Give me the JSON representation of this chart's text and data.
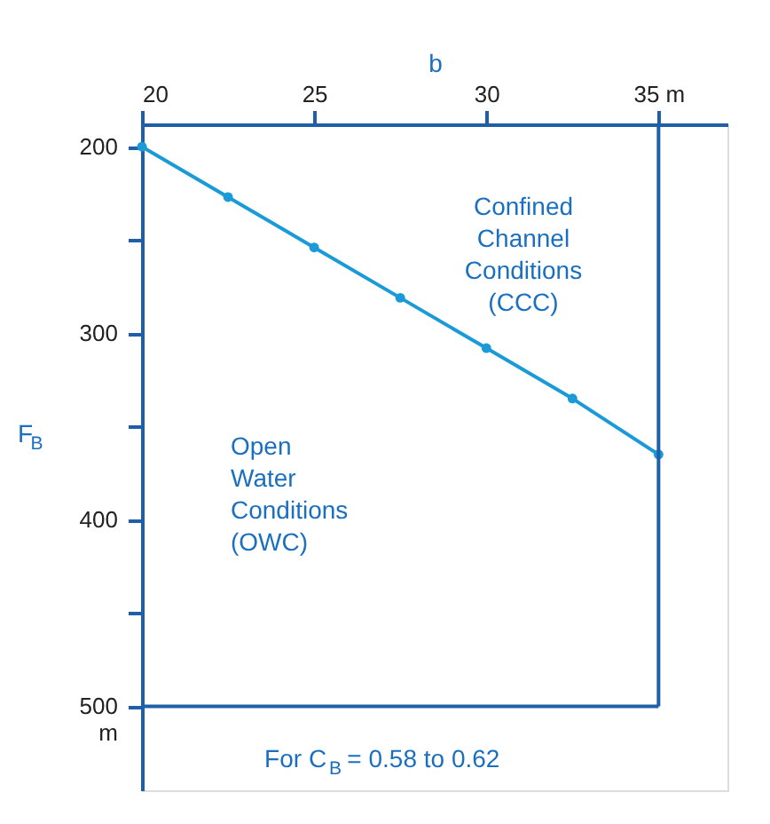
{
  "chart_data": {
    "type": "line",
    "xlabel": "b",
    "ylabel": "F$_{B}$",
    "x": [
      20,
      22.5,
      25,
      27.5,
      30,
      32.5,
      35
    ],
    "series": [
      {
        "color": "#1a9ad6",
        "values": [
          200,
          227,
          254,
          281,
          308,
          335,
          365
        ]
      }
    ],
    "xlim": [
      20,
      37
    ],
    "ylim": [
      545,
      188
    ],
    "xticks": [
      20,
      25,
      30,
      {
        "value": 35,
        "label": "35 m"
      }
    ],
    "yticks": [
      200,
      {
        "value": 250,
        "label": null
      },
      300,
      {
        "value": 350,
        "label": null
      },
      400,
      {
        "value": 450,
        "label": null
      },
      {
        "value": 500,
        "label": "500\nm"
      }
    ],
    "ref_lines": [
      {
        "axis": "x",
        "value": 35,
        "color": "#1f5fa8"
      },
      {
        "axis": "y",
        "value": 500,
        "color": "#1f5fa8"
      }
    ],
    "annotations": [
      "Confined\nChannel\nConditions\n(CCC)",
      "Open\nWater\nConditions\n(OWC)",
      "For C$_{B}$ = 0.58 to 0.62"
    ],
    "marker": "circle",
    "line_style": "solid",
    "grid": false
  }
}
